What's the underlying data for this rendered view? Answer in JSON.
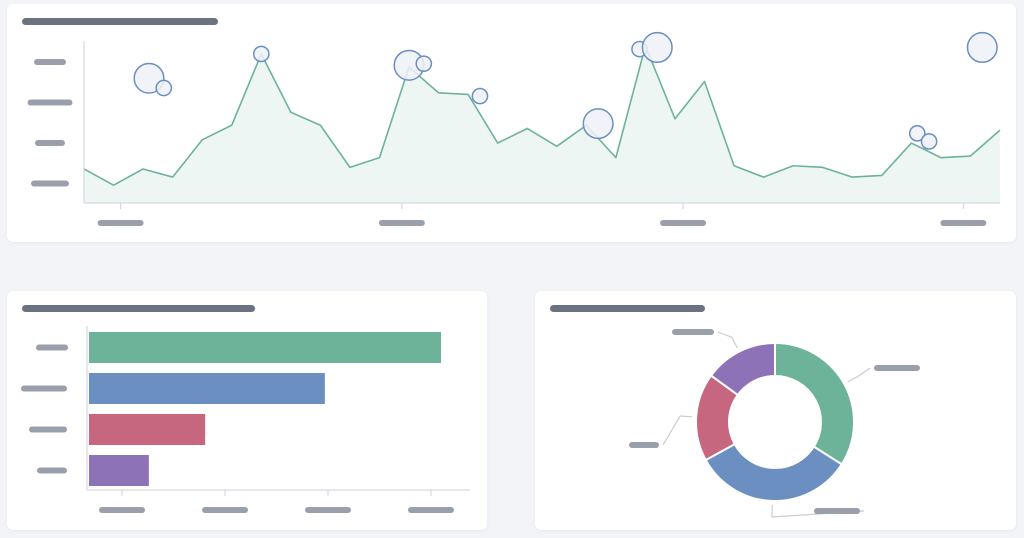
{
  "colors": {
    "line": "#6cb39a",
    "area": "#eef6f3",
    "bubble_fill": "#eef1f7",
    "bubble_stroke": "#6b8fc1",
    "axis": "#cdd2dc",
    "placeholder": "#9aa0ab",
    "title_placeholder": "#6b7280",
    "leader": "#c9cdd4"
  },
  "line_card": {
    "title": "",
    "chart_data": {
      "type": "area",
      "title": "",
      "xlabel": "",
      "ylabel": "",
      "x_tick_labels": [
        "",
        "",
        "",
        ""
      ],
      "y_tick_labels": [
        "",
        "",
        "",
        ""
      ],
      "ylim": [
        0,
        100
      ],
      "grid": false,
      "series": [
        {
          "values": [
            21,
            11,
            21,
            16,
            39,
            48,
            92,
            56,
            48,
            22,
            28,
            84,
            68,
            67,
            37,
            46,
            35,
            48,
            28,
            97,
            52,
            75,
            23,
            16,
            23,
            22,
            16,
            17,
            37,
            28,
            29,
            45
          ]
        }
      ],
      "bubbles": [
        {
          "x": 2.2,
          "y": 77,
          "size": 3
        },
        {
          "x": 2.7,
          "y": 71,
          "size": 1
        },
        {
          "x": 6.0,
          "y": 92,
          "size": 1
        },
        {
          "x": 11.0,
          "y": 85,
          "size": 3
        },
        {
          "x": 11.5,
          "y": 86,
          "size": 1
        },
        {
          "x": 13.4,
          "y": 66,
          "size": 1
        },
        {
          "x": 17.4,
          "y": 49,
          "size": 3
        },
        {
          "x": 18.8,
          "y": 95,
          "size": 1
        },
        {
          "x": 19.4,
          "y": 96,
          "size": 3
        },
        {
          "x": 28.2,
          "y": 43,
          "size": 1
        },
        {
          "x": 28.6,
          "y": 38,
          "size": 1
        },
        {
          "x": 30.4,
          "y": 96,
          "size": 3
        }
      ]
    }
  },
  "bar_card": {
    "title": "",
    "chart_data": {
      "type": "bar",
      "orientation": "horizontal",
      "title": "",
      "categories": [
        "",
        "",
        "",
        ""
      ],
      "values": [
        100,
        67,
        33,
        17
      ],
      "xlim": [
        0,
        100
      ],
      "x_tick_labels": [
        "",
        "",
        "",
        ""
      ],
      "colors": [
        "#6cb39a",
        "#6b8fc1",
        "#c6677f",
        "#8e72b7"
      ]
    }
  },
  "pie_card": {
    "title": "",
    "chart_data": {
      "type": "pie",
      "donut": true,
      "title": "",
      "slices": [
        {
          "label": "",
          "value": 34,
          "color": "#6cb39a"
        },
        {
          "label": "",
          "value": 33,
          "color": "#6b8fc1"
        },
        {
          "label": "",
          "value": 18,
          "color": "#c6677f"
        },
        {
          "label": "",
          "value": 15,
          "color": "#8e72b7"
        }
      ]
    }
  }
}
